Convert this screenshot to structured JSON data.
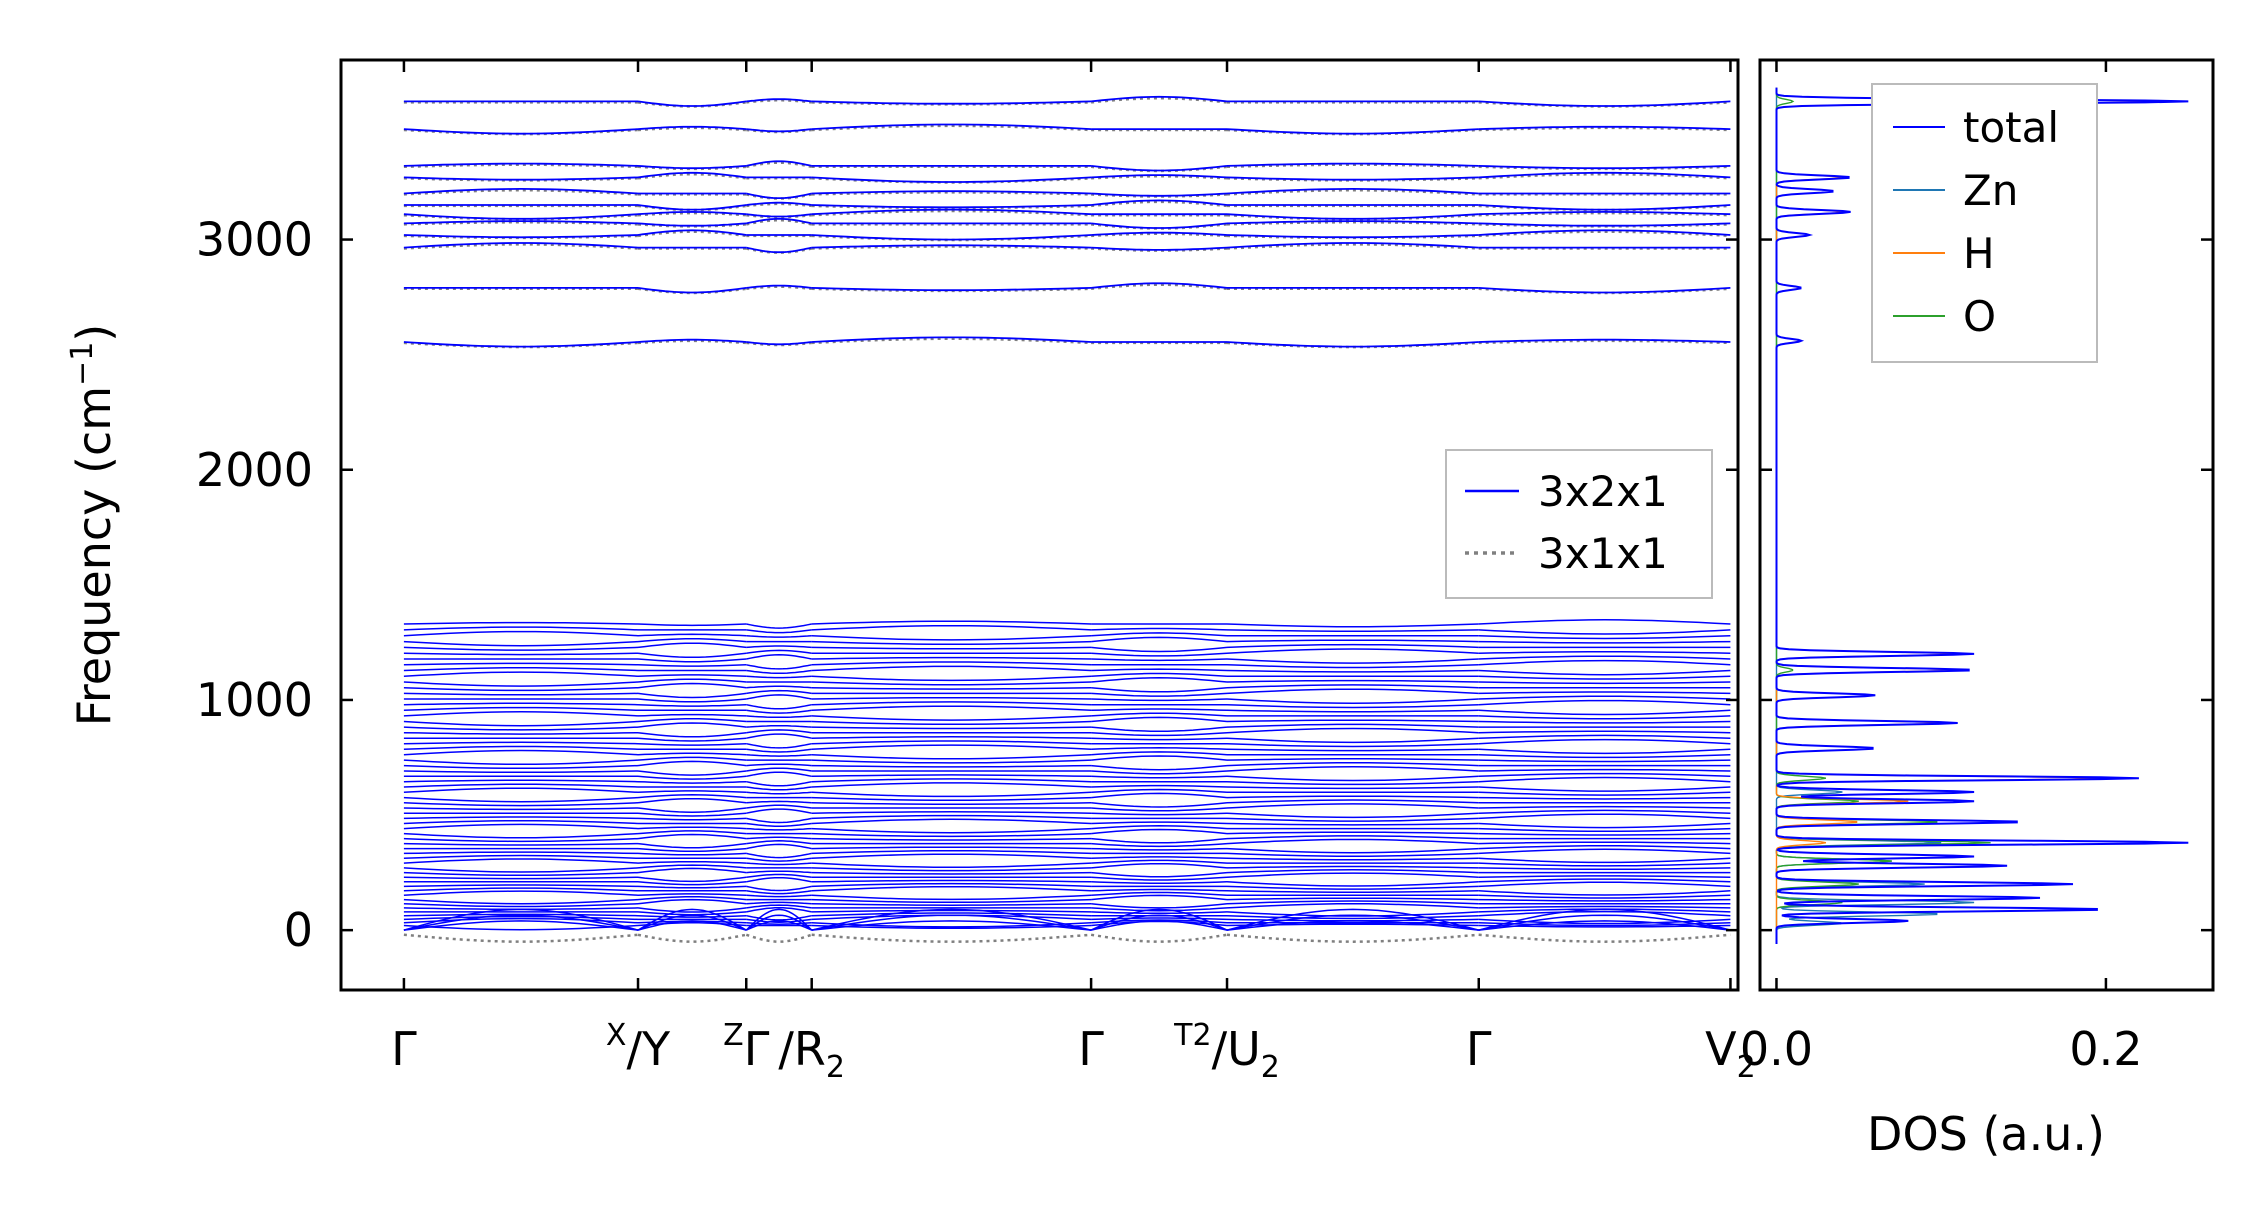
{
  "chart_data": [
    {
      "type": "line",
      "name": "phonon-band-structure",
      "title": "",
      "xlabel": "",
      "ylabel": "Frequency (cm⁻¹)",
      "ylabel_main": "Frequency (cm",
      "ylabel_sup": "−1",
      "ylabel_close": ")",
      "ylim": [
        -260,
        3780
      ],
      "yticks": [
        0,
        1000,
        2000,
        3000
      ],
      "ytick_labels": [
        "0",
        "1000",
        "2000",
        "3000"
      ],
      "x_range": [
        -0.25,
        5.3
      ],
      "kpath": [
        {
          "x": 0.0,
          "main": "Γ",
          "sub": "",
          "sup": ""
        },
        {
          "x": 0.93,
          "main": "/Y",
          "sub": "",
          "sup": "X",
          "main_pre": "/",
          "main_post": "Y"
        },
        {
          "x": 1.36,
          "main": "Γ",
          "sub": "",
          "sup": "Z",
          "main_pre": "Γ",
          "main_post": ""
        },
        {
          "x": 1.62,
          "main": "/R",
          "sub": "2",
          "sup": "",
          "main_pre": "/",
          "main_post": "R"
        },
        {
          "x": 2.73,
          "main": "Γ",
          "sub": "",
          "sup": ""
        },
        {
          "x": 3.27,
          "main": "/U",
          "sub": "2",
          "sup": "T2",
          "main_pre": "/",
          "main_post": "U"
        },
        {
          "x": 4.27,
          "main": "Γ",
          "sub": "",
          "sup": ""
        },
        {
          "x": 5.27,
          "main": "V",
          "sub": "2",
          "sup": ""
        }
      ],
      "segments": [
        [
          0.0,
          0.93
        ],
        [
          0.93,
          1.36
        ],
        [
          1.36,
          1.62
        ],
        [
          1.62,
          2.73
        ],
        [
          2.73,
          3.27
        ],
        [
          3.27,
          4.27
        ],
        [
          4.27,
          5.27
        ]
      ],
      "high_bands": [
        2555,
        2790,
        2965,
        3020,
        3070,
        3110,
        3150,
        3200,
        3270,
        3320,
        3480,
        3600
      ],
      "low_band_range": [
        20,
        1330
      ],
      "low_band_count": 60,
      "series": [
        {
          "name": "3x2x1",
          "color": "#0000ff",
          "style": "solid"
        },
        {
          "name": "3x1x1",
          "color": "#808080",
          "style": "dotted"
        }
      ]
    },
    {
      "type": "line",
      "name": "density-of-states",
      "xlabel": "DOS (a.u.)",
      "ylabel": "",
      "xlim": [
        -0.01,
        0.265
      ],
      "xticks": [
        0.0,
        0.2
      ],
      "xtick_labels": [
        "0.0",
        "0.2"
      ],
      "ylim": [
        -260,
        3780
      ],
      "series": [
        {
          "name": "total",
          "color": "#0000ff",
          "peaks": [
            [
              3600,
              0.25
            ],
            [
              3270,
              0.045
            ],
            [
              3210,
              0.035
            ],
            [
              3120,
              0.045
            ],
            [
              3020,
              0.02
            ],
            [
              2790,
              0.015
            ],
            [
              2560,
              0.015
            ],
            [
              1200,
              0.12
            ],
            [
              1130,
              0.12
            ],
            [
              1020,
              0.06
            ],
            [
              900,
              0.11
            ],
            [
              790,
              0.06
            ],
            [
              660,
              0.22
            ],
            [
              600,
              0.12
            ],
            [
              560,
              0.12
            ],
            [
              470,
              0.15
            ],
            [
              380,
              0.25
            ],
            [
              320,
              0.12
            ],
            [
              280,
              0.14
            ],
            [
              200,
              0.18
            ],
            [
              140,
              0.16
            ],
            [
              90,
              0.2
            ],
            [
              40,
              0.08
            ]
          ]
        },
        {
          "name": "Zn",
          "color": "#1f77b4",
          "peaks": [
            [
              600,
              0.04
            ],
            [
              380,
              0.1
            ],
            [
              300,
              0.07
            ],
            [
              200,
              0.09
            ],
            [
              120,
              0.12
            ],
            [
              70,
              0.1
            ],
            [
              30,
              0.04
            ]
          ]
        },
        {
          "name": "H",
          "color": "#ff7f0e",
          "peaks": [
            [
              3600,
              0.24
            ],
            [
              3270,
              0.04
            ],
            [
              3120,
              0.04
            ],
            [
              2790,
              0.014
            ],
            [
              2560,
              0.014
            ],
            [
              1200,
              0.11
            ],
            [
              1130,
              0.11
            ],
            [
              900,
              0.1
            ],
            [
              660,
              0.2
            ],
            [
              560,
              0.08
            ],
            [
              470,
              0.05
            ],
            [
              380,
              0.03
            ]
          ]
        },
        {
          "name": "O",
          "color": "#2ca02c",
          "peaks": [
            [
              3600,
              0.01
            ],
            [
              1130,
              0.01
            ],
            [
              660,
              0.03
            ],
            [
              560,
              0.05
            ],
            [
              470,
              0.1
            ],
            [
              380,
              0.13
            ],
            [
              300,
              0.07
            ],
            [
              200,
              0.05
            ],
            [
              120,
              0.04
            ]
          ]
        }
      ]
    }
  ]
}
